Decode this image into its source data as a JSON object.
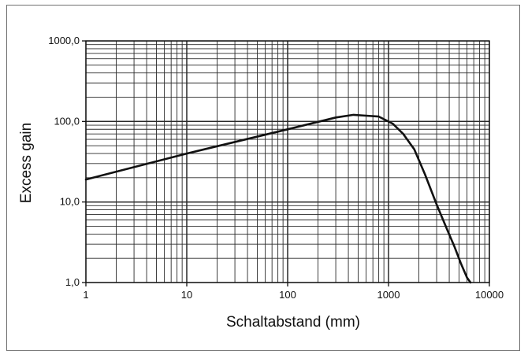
{
  "chart_data": {
    "type": "line",
    "title": "",
    "xlabel": "Schaltabstand (mm)",
    "ylabel": "Excess gain",
    "x_scale": "log",
    "y_scale": "log",
    "xlim": [
      1,
      10000
    ],
    "ylim": [
      1,
      1000
    ],
    "grid": true,
    "x_ticks": [
      {
        "value": 1,
        "label": "1"
      },
      {
        "value": 10,
        "label": "10"
      },
      {
        "value": 100,
        "label": "100"
      },
      {
        "value": 1000,
        "label": "1000"
      },
      {
        "value": 10000,
        "label": "10000"
      }
    ],
    "y_ticks": [
      {
        "value": 1,
        "label": "1,0"
      },
      {
        "value": 10,
        "label": "10,0"
      },
      {
        "value": 100,
        "label": "100,0"
      },
      {
        "value": 1000,
        "label": "1000,0"
      }
    ],
    "series": [
      {
        "color": "#111111",
        "points": [
          {
            "x": 1,
            "y": 19
          },
          {
            "x": 10,
            "y": 40
          },
          {
            "x": 100,
            "y": 80
          },
          {
            "x": 300,
            "y": 112
          },
          {
            "x": 450,
            "y": 121
          },
          {
            "x": 600,
            "y": 118
          },
          {
            "x": 800,
            "y": 115
          },
          {
            "x": 1100,
            "y": 94
          },
          {
            "x": 1400,
            "y": 70
          },
          {
            "x": 1800,
            "y": 45
          },
          {
            "x": 2300,
            "y": 22
          },
          {
            "x": 3000,
            "y": 9.3
          },
          {
            "x": 3800,
            "y": 4.6
          },
          {
            "x": 4500,
            "y": 2.8
          },
          {
            "x": 5200,
            "y": 1.75
          },
          {
            "x": 6000,
            "y": 1.15
          },
          {
            "x": 6500,
            "y": 1.0
          }
        ]
      }
    ]
  }
}
